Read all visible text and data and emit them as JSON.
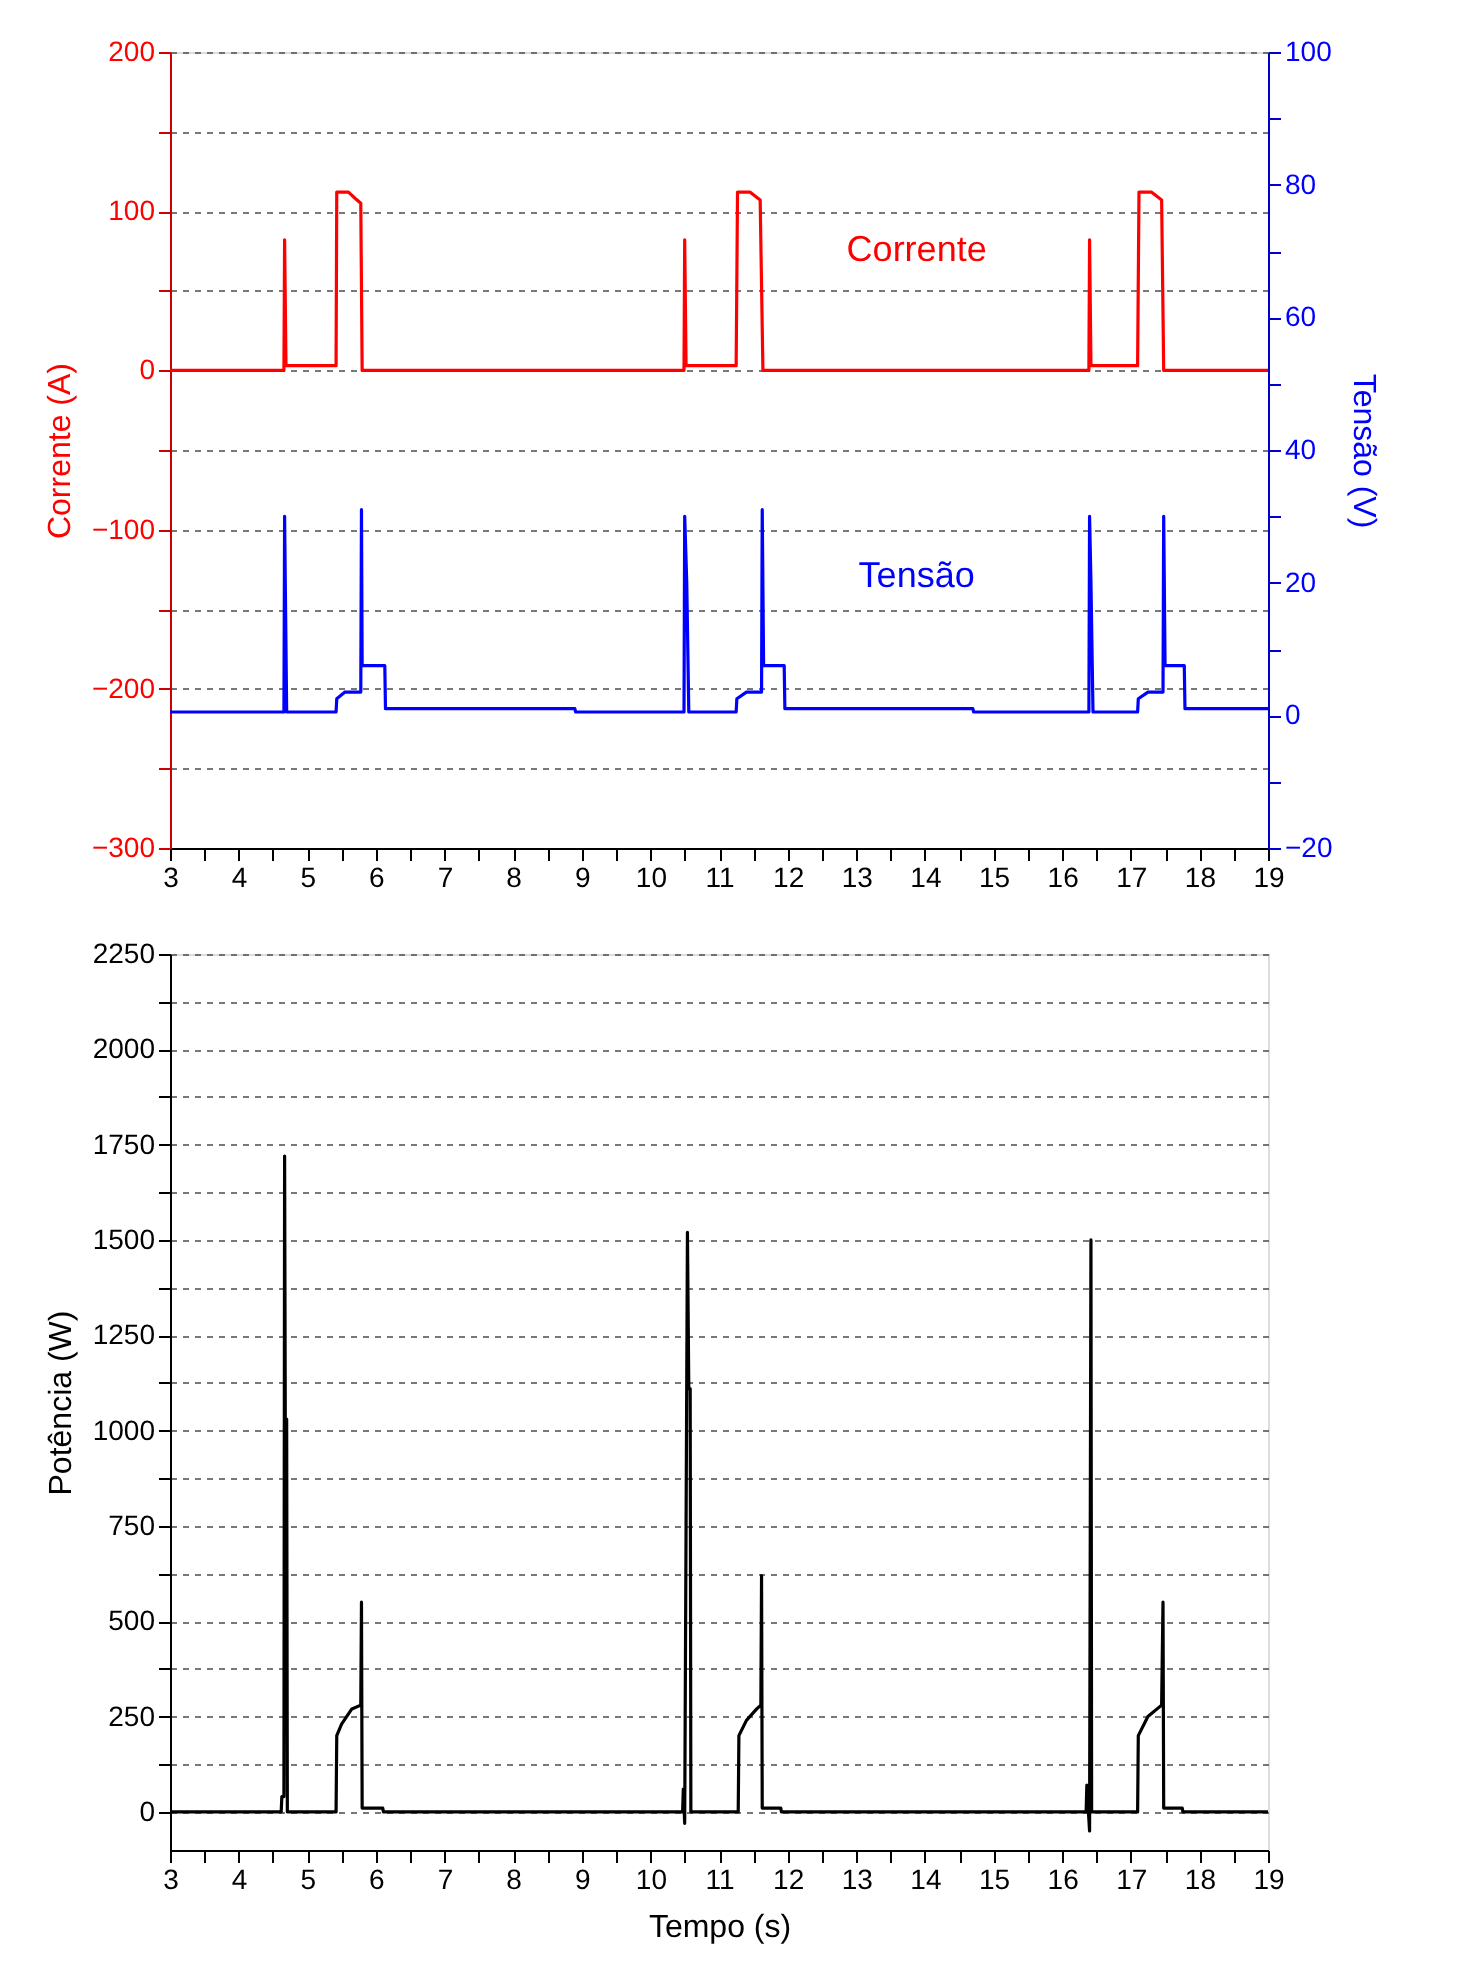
{
  "chart_data": [
    {
      "type": "line",
      "ylabel": "Corrente (A)",
      "y2label": "Tensão (V)",
      "xlim": [
        3,
        19
      ],
      "xticks": [
        3,
        {
          "value": 3.5,
          "label": null
        },
        4,
        {
          "value": 4.5,
          "label": null
        },
        5,
        {
          "value": 5.5,
          "label": null
        },
        6,
        {
          "value": 6.5,
          "label": null
        },
        7,
        {
          "value": 7.5,
          "label": null
        },
        8,
        {
          "value": 8.5,
          "label": null
        },
        9,
        {
          "value": 9.5,
          "label": null
        },
        10,
        {
          "value": 10.5,
          "label": null
        },
        11,
        {
          "value": 11.5,
          "label": null
        },
        12,
        {
          "value": 12.5,
          "label": null
        },
        13,
        {
          "value": 13.5,
          "label": null
        },
        14,
        {
          "value": 14.5,
          "label": null
        },
        15,
        {
          "value": 15.5,
          "label": null
        },
        16,
        {
          "value": 16.5,
          "label": null
        },
        17,
        {
          "value": 17.5,
          "label": null
        },
        18,
        {
          "value": 18.5,
          "label": null
        },
        19
      ],
      "ylim": [
        -300,
        200
      ],
      "yticks": [
        -300,
        {
          "value": -250,
          "label": null
        },
        -200,
        {
          "value": -150,
          "label": null
        },
        -100,
        {
          "value": -50,
          "label": null
        },
        0,
        {
          "value": 50,
          "label": null
        },
        100,
        {
          "value": 150,
          "label": null
        },
        200
      ],
      "y2lim": [
        -20,
        100
      ],
      "y2ticks": [
        -20,
        {
          "value": -10,
          "label": null
        },
        0,
        {
          "value": 10,
          "label": null
        },
        20,
        {
          "value": 30,
          "label": null
        },
        40,
        {
          "value": 50,
          "label": null
        },
        60,
        {
          "value": 70,
          "label": null
        },
        80,
        {
          "value": 90,
          "label": null
        },
        100
      ],
      "grid": "y",
      "line_style": "solid",
      "series": [
        {
          "name": "Corrente",
          "color": "#ff0000",
          "x": [
            3,
            4.66,
            4.67,
            4.69,
            5.42,
            5.43,
            5.6,
            5.7,
            5.78,
            5.8,
            10.49,
            10.5,
            10.52,
            11.25,
            11.27,
            11.45,
            11.6,
            11.64,
            16.39,
            16.4,
            16.42,
            17.1,
            17.12,
            17.3,
            17.45,
            17.48,
            19
          ],
          "values": [
            0,
            0,
            82,
            3,
            3,
            112,
            112,
            108,
            105,
            0,
            0,
            82,
            3,
            3,
            112,
            112,
            107,
            0,
            0,
            82,
            3,
            3,
            112,
            112,
            107,
            0,
            0
          ]
        },
        {
          "name": "Tensão",
          "color": "#0000ff",
          "axis": "y2",
          "x": [
            3,
            4.66,
            4.67,
            4.68,
            4.7,
            5.42,
            5.43,
            5.55,
            5.78,
            5.79,
            5.8,
            6.13,
            6.14,
            8.9,
            8.91,
            10.49,
            10.5,
            10.53,
            10.56,
            11.25,
            11.26,
            11.4,
            11.62,
            11.63,
            11.65,
            11.95,
            11.96,
            14.7,
            14.71,
            16.39,
            16.4,
            16.42,
            16.45,
            17.1,
            17.11,
            17.25,
            17.47,
            17.48,
            17.5,
            17.78,
            17.79,
            19
          ],
          "values": [
            0.5,
            0.5,
            30,
            20,
            0.5,
            0.5,
            2.5,
            3.5,
            3.5,
            31,
            7.5,
            7.5,
            1,
            1,
            0.5,
            0.5,
            30,
            20,
            0.5,
            0.5,
            2.5,
            3.5,
            3.5,
            31,
            7.5,
            7.5,
            1,
            1,
            0.5,
            0.5,
            30,
            20,
            0.5,
            0.5,
            2.5,
            3.5,
            3.5,
            30,
            7.5,
            7.5,
            1,
            1
          ]
        }
      ]
    },
    {
      "type": "line",
      "xlabel": "Tempo (s)",
      "ylabel": "Potência (W)",
      "xlim": [
        3,
        19
      ],
      "xticks": [
        3,
        {
          "value": 3.5,
          "label": null
        },
        4,
        {
          "value": 4.5,
          "label": null
        },
        5,
        {
          "value": 5.5,
          "label": null
        },
        6,
        {
          "value": 6.5,
          "label": null
        },
        7,
        {
          "value": 7.5,
          "label": null
        },
        8,
        {
          "value": 8.5,
          "label": null
        },
        9,
        {
          "value": 9.5,
          "label": null
        },
        10,
        {
          "value": 10.5,
          "label": null
        },
        11,
        {
          "value": 11.5,
          "label": null
        },
        12,
        {
          "value": 12.5,
          "label": null
        },
        13,
        {
          "value": 13.5,
          "label": null
        },
        14,
        {
          "value": 14.5,
          "label": null
        },
        15,
        {
          "value": 15.5,
          "label": null
        },
        16,
        {
          "value": 16.5,
          "label": null
        },
        17,
        {
          "value": 17.5,
          "label": null
        },
        18,
        {
          "value": 18.5,
          "label": null
        },
        19
      ],
      "ylim": [
        -100,
        2250
      ],
      "yticks": [
        0,
        {
          "value": 125,
          "label": null
        },
        250,
        {
          "value": 375,
          "label": null
        },
        500,
        {
          "value": 625,
          "label": null
        },
        750,
        {
          "value": 875,
          "label": null
        },
        1000,
        {
          "value": 1125,
          "label": null
        },
        1250,
        {
          "value": 1375,
          "label": null
        },
        1500,
        {
          "value": 1625,
          "label": null
        },
        1750,
        {
          "value": 1875,
          "label": null
        },
        2000,
        {
          "value": 2125,
          "label": null
        },
        2250
      ],
      "grid": "y",
      "line_style": "solid",
      "series": [
        {
          "color": "#000000",
          "x": [
            3,
            4.62,
            4.63,
            4.66,
            4.67,
            4.68,
            4.7,
            4.71,
            5.42,
            5.43,
            5.5,
            5.65,
            5.78,
            5.79,
            5.8,
            6.1,
            6.11,
            10.47,
            10.48,
            10.5,
            10.54,
            10.56,
            10.58,
            10.59,
            11.28,
            11.29,
            11.4,
            11.55,
            11.61,
            11.62,
            11.63,
            11.9,
            11.91,
            16.35,
            16.36,
            16.4,
            16.42,
            16.43,
            17.1,
            17.11,
            17.25,
            17.45,
            17.47,
            17.48,
            17.75,
            17.76,
            19
          ],
          "values": [
            0,
            0,
            40,
            40,
            1720,
            1030,
            1030,
            0,
            0,
            200,
            230,
            270,
            280,
            550,
            10,
            10,
            0,
            0,
            60,
            -30,
            1520,
            1110,
            1110,
            0,
            0,
            200,
            240,
            270,
            280,
            620,
            10,
            10,
            0,
            0,
            70,
            -50,
            1500,
            0,
            0,
            200,
            250,
            280,
            550,
            10,
            10,
            0,
            0
          ]
        }
      ]
    }
  ]
}
